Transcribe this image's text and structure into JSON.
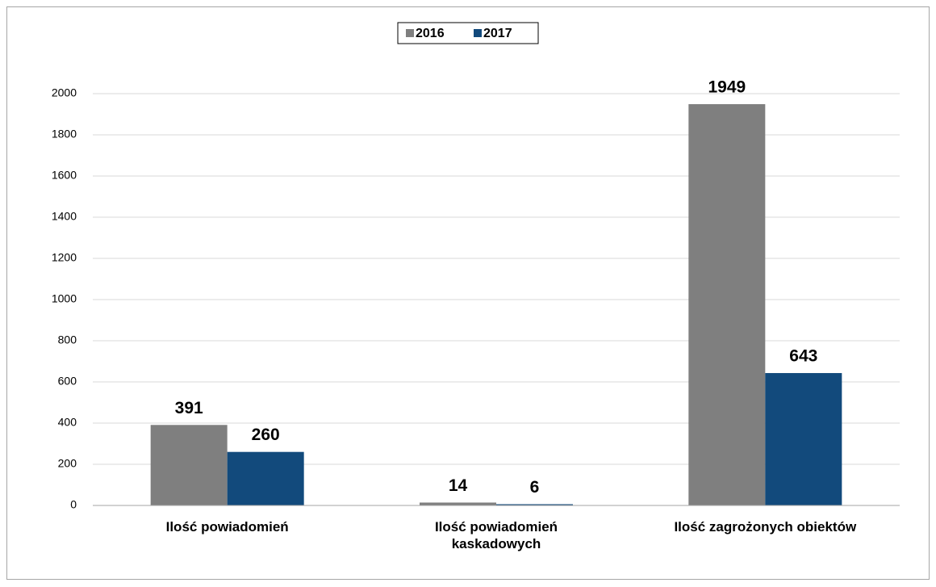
{
  "chart_data": {
    "type": "bar",
    "categories": [
      "Ilość powiadomień",
      "Ilość powiadomień kaskadowych",
      "Ilość zagrożonych obiektów"
    ],
    "series": [
      {
        "name": "2016",
        "color": "#7f7f7f",
        "values": [
          391,
          14,
          1949
        ]
      },
      {
        "name": "2017",
        "color": "#124a7c",
        "values": [
          260,
          6,
          643
        ]
      }
    ],
    "ylim": [
      0,
      2000
    ],
    "yticks": [
      0,
      200,
      400,
      600,
      800,
      1000,
      1200,
      1400,
      1600,
      1800,
      2000
    ],
    "grid": true,
    "legend": "top"
  }
}
